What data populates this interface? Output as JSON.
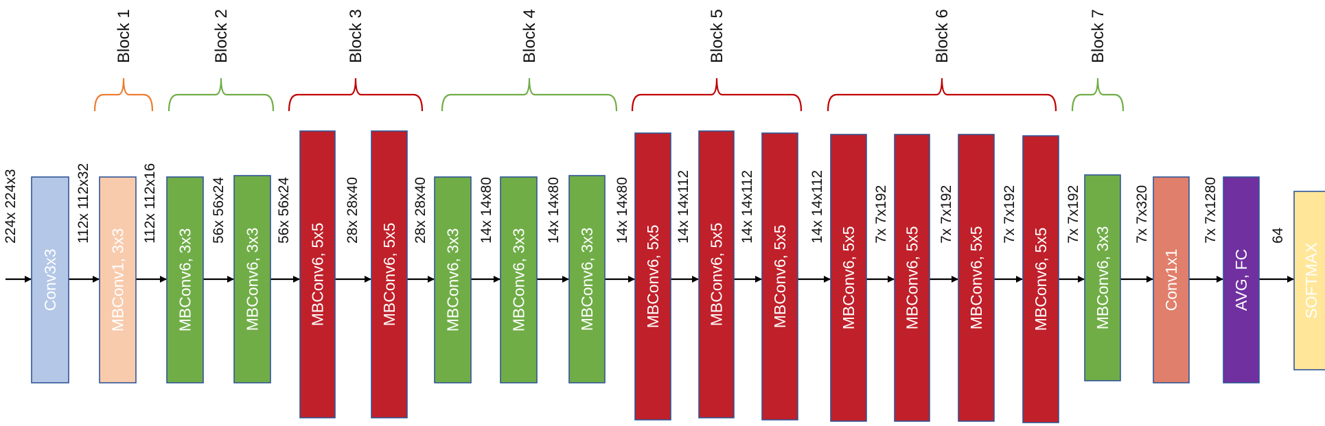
{
  "blocks": [
    {
      "label": "Block 1",
      "color": "#ED7D31"
    },
    {
      "label": "Block 2",
      "color": "#70AD47"
    },
    {
      "label": "Block 3",
      "color": "#C00000"
    },
    {
      "label": "Block 4",
      "color": "#70AD47"
    },
    {
      "label": "Block 5",
      "color": "#C00000"
    },
    {
      "label": "Block 6",
      "color": "#C00000"
    },
    {
      "label": "Block 7",
      "color": "#70AD47"
    }
  ],
  "layers": [
    {
      "label": "Conv3x3",
      "color": "#B4C7E7"
    },
    {
      "label": "MBConv1, 3x3",
      "color": "#F8CBAD"
    },
    {
      "label": "MBConv6, 3x3",
      "color": "#70AD47"
    },
    {
      "label": "MBConv6, 3x3",
      "color": "#70AD47"
    },
    {
      "label": "MBConv6, 5x5",
      "color": "#C0202A"
    },
    {
      "label": "MBConv6, 5x5",
      "color": "#C0202A"
    },
    {
      "label": "MBConv6, 3x3",
      "color": "#70AD47"
    },
    {
      "label": "MBConv6, 3x3",
      "color": "#70AD47"
    },
    {
      "label": "MBConv6, 3x3",
      "color": "#70AD47"
    },
    {
      "label": "MBConv6, 5x5",
      "color": "#C0202A"
    },
    {
      "label": "MBConv6, 5x5",
      "color": "#C0202A"
    },
    {
      "label": "MBConv6, 5x5",
      "color": "#C0202A"
    },
    {
      "label": "MBConv6, 5x5",
      "color": "#C0202A"
    },
    {
      "label": "MBConv6, 5x5",
      "color": "#C0202A"
    },
    {
      "label": "MBConv6, 5x5",
      "color": "#C0202A"
    },
    {
      "label": "MBConv6, 5x5",
      "color": "#C0202A"
    },
    {
      "label": "MBConv6, 3x3",
      "color": "#70AD47"
    },
    {
      "label": "Conv1x1",
      "color": "#E07F6B"
    },
    {
      "label": "AVG, FC",
      "color": "#7030A0"
    },
    {
      "label": "SOFTMAX",
      "color": "#FFE699"
    }
  ],
  "dims": [
    "224x 224x3",
    "112x 112x32",
    "112x 112x16",
    "56x 56x24",
    "56x 56x24",
    "28x 28x40",
    "28x 28x40",
    "14x 14x80",
    "14x 14x80",
    "14x 14x80",
    "14x 14x112",
    "14x 14x112",
    "14x 14x112",
    "7x 7x192",
    "7x 7x192",
    "7x 7x192",
    "7x 7x192",
    "7x 7x320",
    "7x 7x1280",
    "64"
  ],
  "edge_color": "#2F5597",
  "arrow_color": "#000000"
}
